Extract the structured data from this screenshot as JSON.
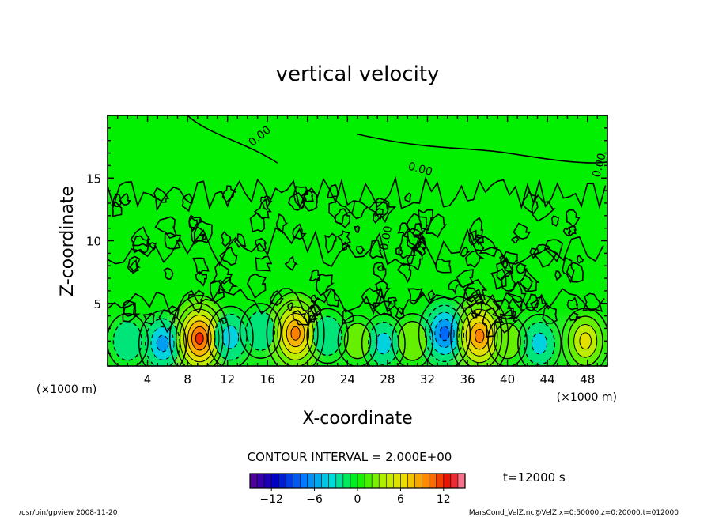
{
  "chart_data": {
    "type": "heatmap",
    "title": "vertical velocity",
    "xlabel": "X-coordinate",
    "ylabel": "Z-coordinate",
    "x_unit_left": "(×1000 m)",
    "x_unit_right": "(×1000 m)",
    "xlim": [
      0,
      50
    ],
    "ylim": [
      0,
      20
    ],
    "xticks": [
      4,
      8,
      12,
      16,
      20,
      24,
      28,
      32,
      36,
      40,
      44,
      48
    ],
    "yticks": [
      5,
      10,
      15
    ],
    "contour_label": "0.00",
    "contour_interval": "CONTOUR INTERVAL = 2.000E+00",
    "time_label": "t=12000 s",
    "colorbar": {
      "min": -15,
      "max": 15,
      "ticks": [
        -12,
        -6,
        0,
        6,
        12
      ]
    },
    "cells": [
      {
        "x": 2.0,
        "z": 2.0,
        "w": -3
      },
      {
        "x": 5.5,
        "z": 1.8,
        "w": -6
      },
      {
        "x": 9.2,
        "z": 2.2,
        "w": 12
      },
      {
        "x": 12.3,
        "z": 2.3,
        "w": -5
      },
      {
        "x": 15.3,
        "z": 2.8,
        "w": -3
      },
      {
        "x": 18.8,
        "z": 2.6,
        "w": 11
      },
      {
        "x": 22.0,
        "z": 2.4,
        "w": -3
      },
      {
        "x": 25.0,
        "z": 2.0,
        "w": 2
      },
      {
        "x": 27.6,
        "z": 1.8,
        "w": -4
      },
      {
        "x": 30.5,
        "z": 2.0,
        "w": 3
      },
      {
        "x": 33.7,
        "z": 2.6,
        "w": -8
      },
      {
        "x": 37.2,
        "z": 2.4,
        "w": 11
      },
      {
        "x": 40.0,
        "z": 2.0,
        "w": 2
      },
      {
        "x": 43.2,
        "z": 1.8,
        "w": -4
      },
      {
        "x": 47.8,
        "z": 2.0,
        "w": 6
      }
    ]
  },
  "footer": {
    "left": "/usr/bin/gpview  2008-11-20",
    "right": "MarsCond_VelZ.nc@VelZ,x=0:50000,z=0:20000,t=012000"
  }
}
